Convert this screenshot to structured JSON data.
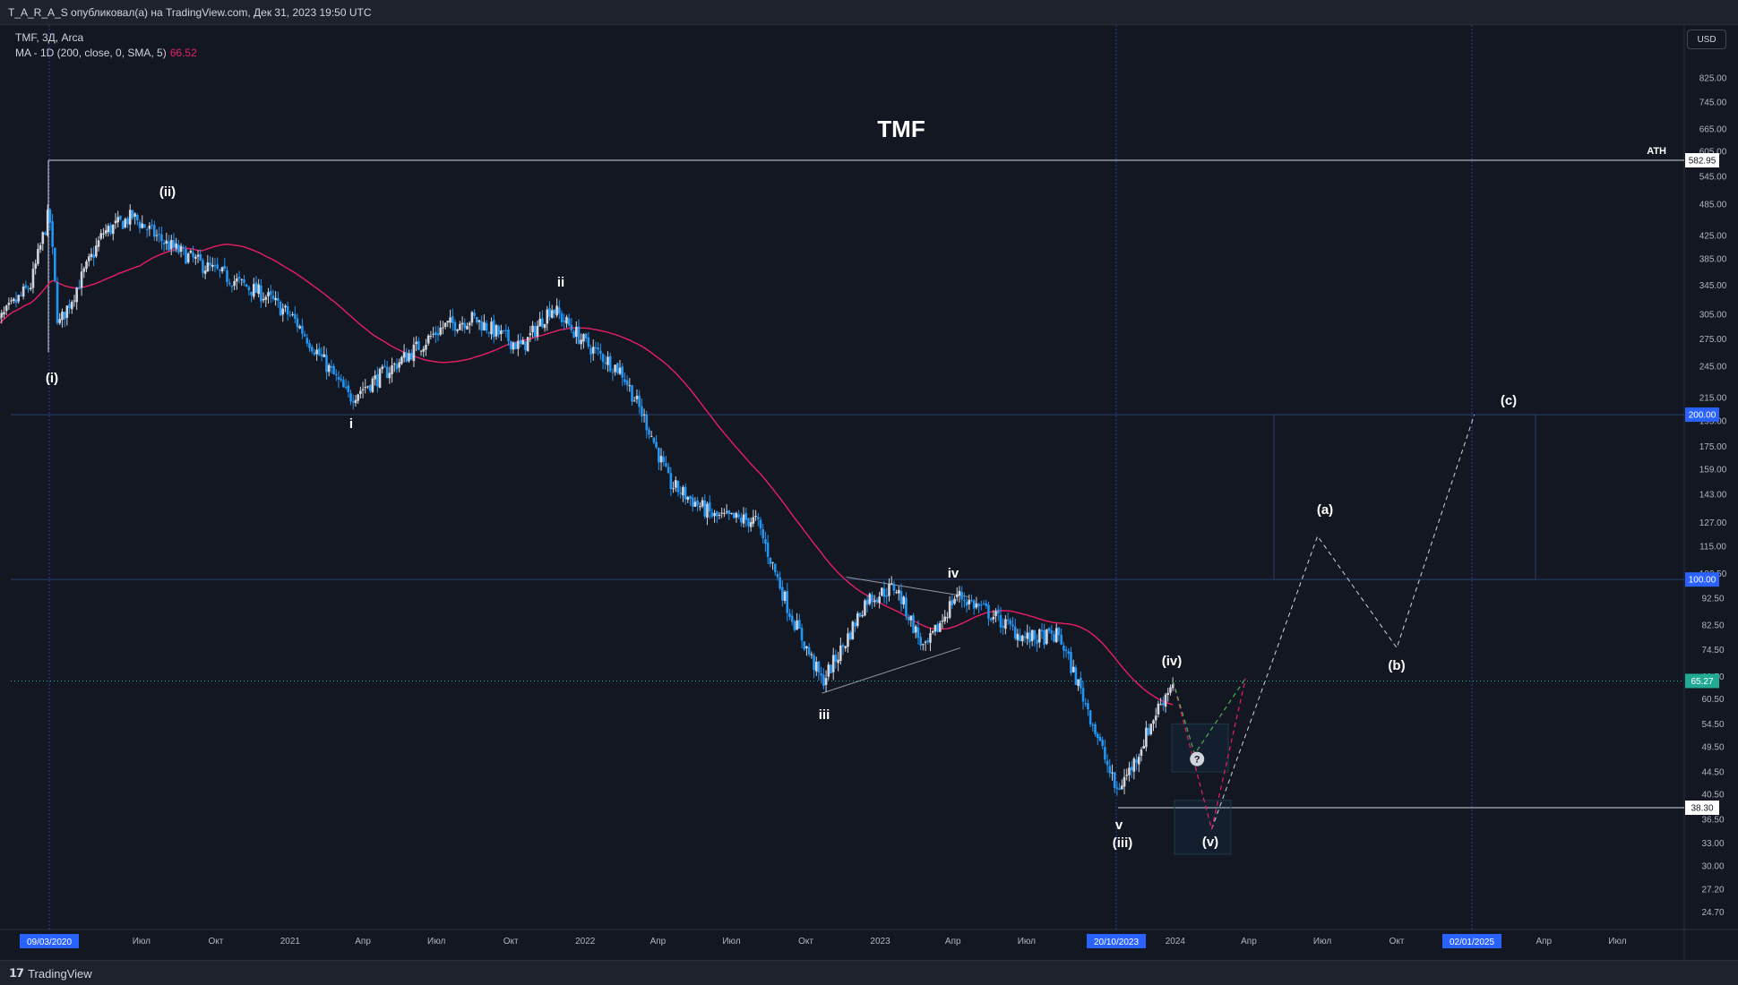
{
  "header": {
    "published": "T_A_R_A_S опубликовал(а) на TradingView.com, Дек 31, 2023 19:50 UTC"
  },
  "legend": {
    "symbol": "TMF, 3Д, Arca",
    "ma_label": "MA - 1D (200, close, 0, SMA, 5)",
    "ma_value": "66.52"
  },
  "price_scale": {
    "currency_button": "USD"
  },
  "footer": {
    "brand": "TradingView"
  },
  "colors": {
    "background": "#131722",
    "candle_up": "#d1d4dc",
    "candle_down": "#2196f3",
    "ma_line": "#e91e63",
    "grid": "#1c2030",
    "highlight_label": "#2962ff"
  },
  "chart_data": {
    "type": "candlestick",
    "title": "TMF",
    "y_scale": "log",
    "ylim": [
      22.5,
      900
    ],
    "y_ticks": [
      "825.00",
      "745.00",
      "665.00",
      "605.00",
      "545.00",
      "485.00",
      "425.00",
      "385.00",
      "345.00",
      "305.00",
      "275.00",
      "245.00",
      "215.00",
      "195.00",
      "175.00",
      "159.00",
      "143.00",
      "127.00",
      "115.00",
      "102.50",
      "92.50",
      "82.50",
      "74.50",
      "66.50",
      "60.50",
      "54.50",
      "49.50",
      "44.50",
      "40.50",
      "36.50",
      "33.00",
      "30.00",
      "27.20",
      "24.70"
    ],
    "x_ticks": [
      "Июл",
      "Окт",
      "2021",
      "Апр",
      "Июл",
      "Окт",
      "2022",
      "Апр",
      "Июл",
      "Окт",
      "2023",
      "Апр",
      "Июл",
      "2024",
      "Апр",
      "Июл",
      "Окт",
      "Апр",
      "Июл"
    ],
    "x_highlight_labels": [
      "09/03/2020",
      "20/10/2023",
      "02/01/2025"
    ],
    "price_markers": [
      {
        "label": "582.95",
        "style": "white",
        "note": "ATH"
      },
      {
        "label": "200.00",
        "style": "blue"
      },
      {
        "label": "100.00",
        "style": "blue"
      },
      {
        "label": "65.27",
        "style": "cyan"
      },
      {
        "label": "38.30",
        "style": "white"
      }
    ],
    "ath_label": "ATH",
    "wave_labels": [
      "(i)",
      "(ii)",
      "i",
      "ii",
      "iii",
      "iv",
      "v",
      "(iii)",
      "(iv)",
      "(v)",
      "(a)",
      "(b)",
      "(c)"
    ],
    "approx_price_path": {
      "dates": [
        "2020-01-01",
        "2020-02-15",
        "2020-03-09",
        "2020-03-20",
        "2020-05-15",
        "2020-06-20",
        "2020-08-01",
        "2020-09-15",
        "2020-12-01",
        "2021-01-05",
        "2021-03-15",
        "2021-05-01",
        "2021-07-10",
        "2021-08-15",
        "2021-10-15",
        "2021-11-20",
        "2022-01-01",
        "2022-02-15",
        "2022-03-20",
        "2022-04-15",
        "2022-06-10",
        "2022-08-01",
        "2022-09-10",
        "2022-10-21",
        "2022-11-15",
        "2022-12-15",
        "2023-01-20",
        "2023-02-25",
        "2023-04-05",
        "2023-05-15",
        "2023-06-30",
        "2023-08-10",
        "2023-09-15",
        "2023-10-20",
        "2023-11-10",
        "2023-12-10",
        "2023-12-29"
      ],
      "close": [
        290,
        345,
        470,
        290,
        430,
        460,
        410,
        375,
        330,
        300,
        215,
        240,
        290,
        300,
        265,
        315,
        270,
        240,
        190,
        150,
        130,
        128,
        88,
        65,
        75,
        92,
        97,
        74,
        94,
        87,
        78,
        79,
        58,
        41,
        46,
        58,
        65.27
      ]
    },
    "ma_series": {
      "name": "MA - 1D (200, close, 0, SMA, 5)",
      "last_value": 66.52
    },
    "projection": {
      "path_labels": [
        "(iv)",
        "(v)",
        "(a)",
        "(b)",
        "(c)"
      ],
      "approx_values": [
        65.27,
        35,
        120,
        75,
        200
      ],
      "approx_dates": [
        "2023-12-29",
        "2024-02-15",
        "2024-06-25",
        "2024-10-01",
        "2025-01-05"
      ],
      "alt_path_values": [
        65.27,
        48,
        65
      ]
    },
    "xlabel": "",
    "ylabel": ""
  }
}
